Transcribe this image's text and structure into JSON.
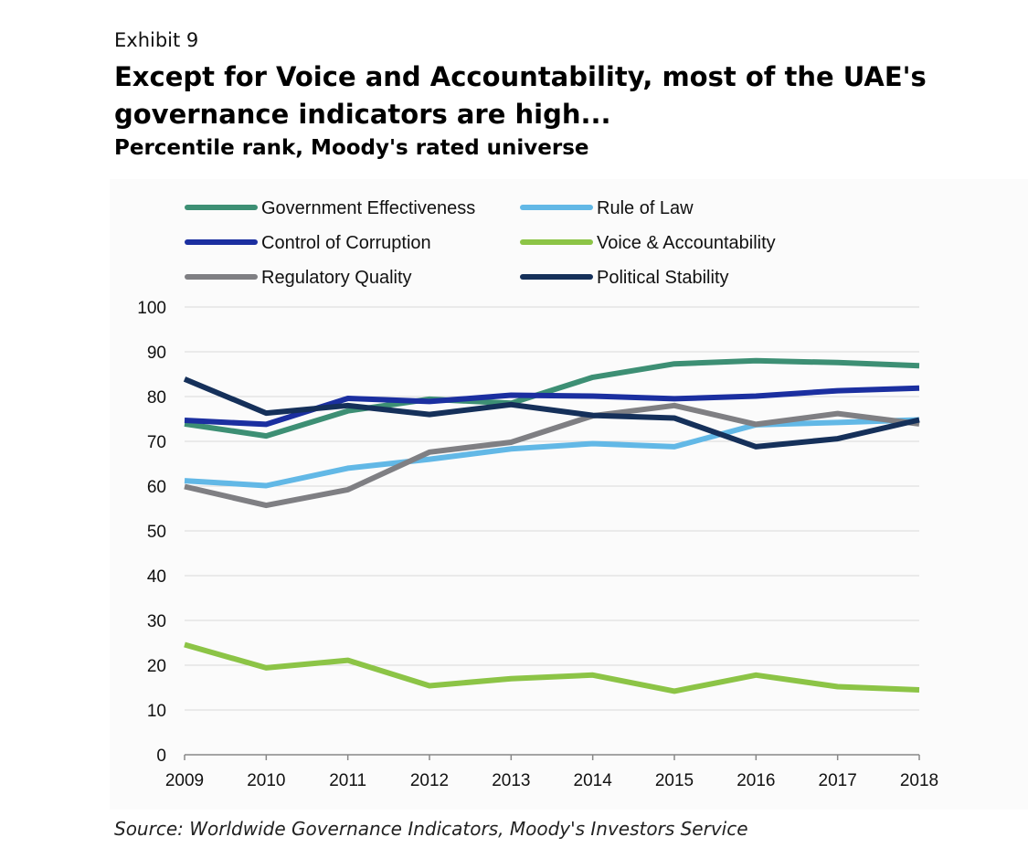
{
  "exhibit": "Exhibit 9",
  "title": "Except for Voice and Accountability, most of the UAE's governance indicators are high...",
  "subtitle": "Percentile rank, Moody's rated universe",
  "source": "Source: Worldwide Governance Indicators, Moody's Investors Service",
  "chart_data": {
    "type": "line",
    "x": [
      "2009",
      "2010",
      "2011",
      "2012",
      "2013",
      "2014",
      "2015",
      "2016",
      "2017",
      "2018"
    ],
    "ylim": [
      0,
      100
    ],
    "yticks": [
      "0",
      "10",
      "20",
      "30",
      "40",
      "50",
      "60",
      "70",
      "80",
      "90",
      "100"
    ],
    "grid": true,
    "legend_position": "top",
    "series": [
      {
        "name": "Government Effectiveness",
        "color": "#3d8f74",
        "values": [
          73.9,
          71.2,
          76.8,
          79.4,
          78.5,
          84.3,
          87.3,
          88.0,
          87.6,
          86.9
        ]
      },
      {
        "name": "Rule of Law",
        "color": "#62b8e6",
        "values": [
          61.2,
          60.1,
          64.0,
          66.0,
          68.3,
          69.5,
          68.8,
          73.7,
          74.2,
          74.8
        ]
      },
      {
        "name": "Control of Corruption",
        "color": "#1b2fa0",
        "values": [
          74.7,
          73.8,
          79.6,
          78.9,
          80.3,
          80.1,
          79.5,
          80.1,
          81.3,
          81.9
        ]
      },
      {
        "name": "Voice & Accountability",
        "color": "#8cc446",
        "values": [
          24.6,
          19.4,
          21.1,
          15.4,
          17.0,
          17.8,
          14.2,
          17.8,
          15.2,
          14.5
        ]
      },
      {
        "name": "Regulatory Quality",
        "color": "#7f7f83",
        "values": [
          59.9,
          55.7,
          59.2,
          67.6,
          69.8,
          75.7,
          78.0,
          73.8,
          76.2,
          73.9
        ]
      },
      {
        "name": "Political Stability",
        "color": "#15305a",
        "values": [
          83.9,
          76.3,
          78.0,
          76.0,
          78.2,
          75.8,
          75.2,
          68.8,
          70.6,
          74.8
        ]
      }
    ]
  }
}
